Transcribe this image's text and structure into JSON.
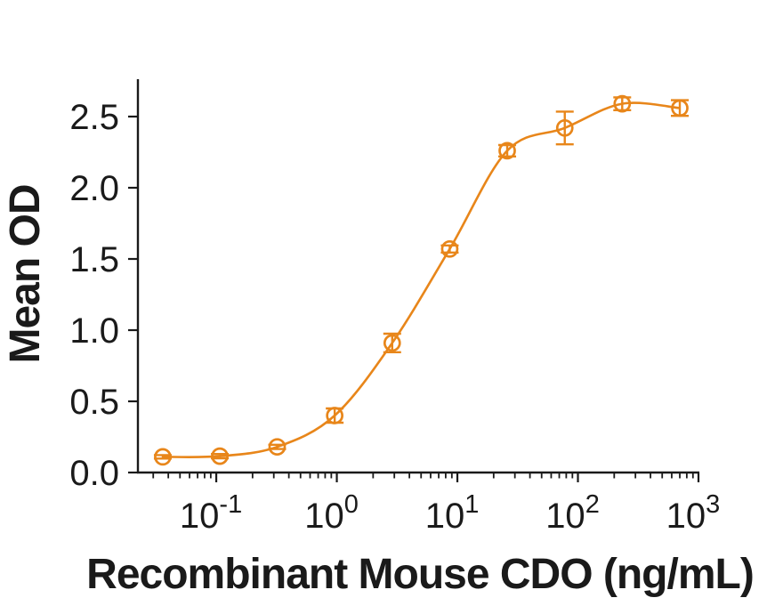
{
  "figure": {
    "background": "#ffffff",
    "axis_color": "#1a1a1a"
  },
  "chart_data": {
    "type": "scatter",
    "subtype": "dose-response-curve-with-error-bars",
    "title": "",
    "xlabel": "Recombinant Mouse CDO (ng/mL)",
    "ylabel": "Mean OD",
    "x_scale": "log10",
    "xlim": [
      0.0224,
      1000
    ],
    "ylim": [
      0,
      2.76
    ],
    "grid": false,
    "legend": "none",
    "x_tick_base": "10",
    "x_tick_exponents": [
      -1,
      0,
      1,
      2,
      3
    ],
    "y_ticks": [
      0.0,
      0.5,
      1.0,
      1.5,
      2.0,
      2.5
    ],
    "y_tick_labels": [
      "0.0",
      "0.5",
      "1.0",
      "1.5",
      "2.0",
      "2.5"
    ],
    "series": [
      {
        "name": "Recombinant Mouse CDO",
        "color": "#E8861A",
        "marker": "open-circle",
        "line": "smooth-fit",
        "points": [
          {
            "x": 0.036,
            "y": 0.11,
            "err": 0.012
          },
          {
            "x": 0.107,
            "y": 0.115,
            "err": 0.015
          },
          {
            "x": 0.32,
            "y": 0.18,
            "err": 0.015
          },
          {
            "x": 0.96,
            "y": 0.4,
            "err": 0.05
          },
          {
            "x": 2.88,
            "y": 0.91,
            "err": 0.065
          },
          {
            "x": 8.64,
            "y": 1.57,
            "err": 0.025
          },
          {
            "x": 25.9,
            "y": 2.26,
            "err": 0.04
          },
          {
            "x": 77.8,
            "y": 2.42,
            "err": 0.115
          },
          {
            "x": 233,
            "y": 2.59,
            "err": 0.045
          },
          {
            "x": 700,
            "y": 2.56,
            "err": 0.055
          }
        ]
      }
    ]
  }
}
